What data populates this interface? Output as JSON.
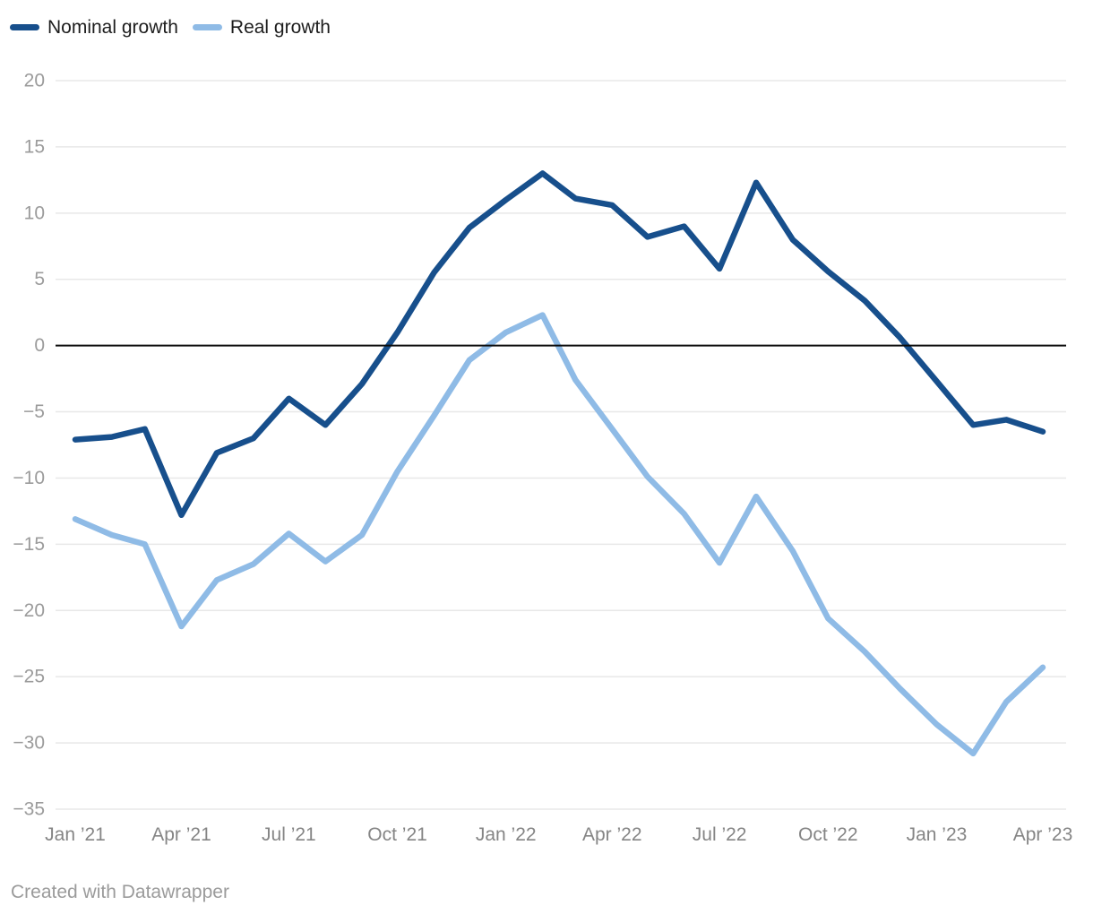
{
  "legend": {
    "items": [
      {
        "label": "Nominal growth",
        "color": "#174f8c"
      },
      {
        "label": "Real growth",
        "color": "#8fbbe6"
      }
    ]
  },
  "footer": {
    "credit": "Created with Datawrapper"
  },
  "colors": {
    "background": "#ffffff",
    "gridline": "#e8e8e8",
    "zero_line": "#0b0b0b",
    "y_tick_label": "#9b9b9b",
    "x_tick_label": "#858585",
    "nominal_line": "#174f8c",
    "real_line": "#8fbbe6"
  },
  "chart_data": {
    "type": "line",
    "title": "",
    "xlabel": "",
    "ylabel": "",
    "ylim": [
      -35,
      20
    ],
    "grid": true,
    "zero_baseline": true,
    "legend_position": "top-left",
    "x": [
      "2021-01",
      "2021-02",
      "2021-03",
      "2021-04",
      "2021-05",
      "2021-06",
      "2021-07",
      "2021-08",
      "2021-09",
      "2021-10",
      "2021-11",
      "2021-12",
      "2022-01",
      "2022-02",
      "2022-03",
      "2022-04",
      "2022-05",
      "2022-06",
      "2022-07",
      "2022-08",
      "2022-09",
      "2022-10",
      "2022-11",
      "2022-12",
      "2023-01",
      "2023-02",
      "2023-03",
      "2023-04"
    ],
    "series": [
      {
        "name": "Nominal growth",
        "color": "#174f8c",
        "values": [
          -7.1,
          -6.9,
          -6.3,
          -12.8,
          -8.1,
          -7.0,
          -4.0,
          -6.0,
          -2.9,
          1.0,
          5.5,
          8.9,
          11.0,
          13.0,
          11.1,
          10.6,
          8.2,
          9.0,
          5.8,
          12.3,
          8.0,
          5.6,
          3.4,
          0.6,
          -2.7,
          -6.0,
          -5.6,
          -6.5
        ]
      },
      {
        "name": "Real growth",
        "color": "#8fbbe6",
        "values": [
          -13.1,
          -14.3,
          -15.0,
          -21.2,
          -17.7,
          -16.5,
          -14.2,
          -16.3,
          -14.3,
          -9.5,
          -5.3,
          -1.1,
          1.0,
          2.3,
          -2.6,
          -6.3,
          -9.9,
          -12.7,
          -16.4,
          -11.4,
          -15.5,
          -20.6,
          -23.1,
          -25.9,
          -28.6,
          -30.8,
          -26.9,
          -24.3
        ]
      }
    ],
    "yticks": [
      {
        "v": 20,
        "label": "20"
      },
      {
        "v": 15,
        "label": "15"
      },
      {
        "v": 10,
        "label": "10"
      },
      {
        "v": 5,
        "label": "5"
      },
      {
        "v": 0,
        "label": "0"
      },
      {
        "v": -5,
        "label": "−5"
      },
      {
        "v": -10,
        "label": "−10"
      },
      {
        "v": -15,
        "label": "−15"
      },
      {
        "v": -20,
        "label": "−20"
      },
      {
        "v": -25,
        "label": "−25"
      },
      {
        "v": -30,
        "label": "−30"
      },
      {
        "v": -35,
        "label": "−35"
      }
    ],
    "xticks": [
      {
        "date": "2021-01",
        "label": "Jan ’21"
      },
      {
        "date": "2021-04",
        "label": "Apr ’21"
      },
      {
        "date": "2021-07",
        "label": "Jul ’21"
      },
      {
        "date": "2021-10",
        "label": "Oct ’21"
      },
      {
        "date": "2022-01",
        "label": "Jan ’22"
      },
      {
        "date": "2022-04",
        "label": "Apr ’22"
      },
      {
        "date": "2022-07",
        "label": "Jul ’22"
      },
      {
        "date": "2022-10",
        "label": "Oct ’22"
      },
      {
        "date": "2023-01",
        "label": "Jan ’23"
      },
      {
        "date": "2023-04",
        "label": "Apr ’23"
      }
    ]
  }
}
